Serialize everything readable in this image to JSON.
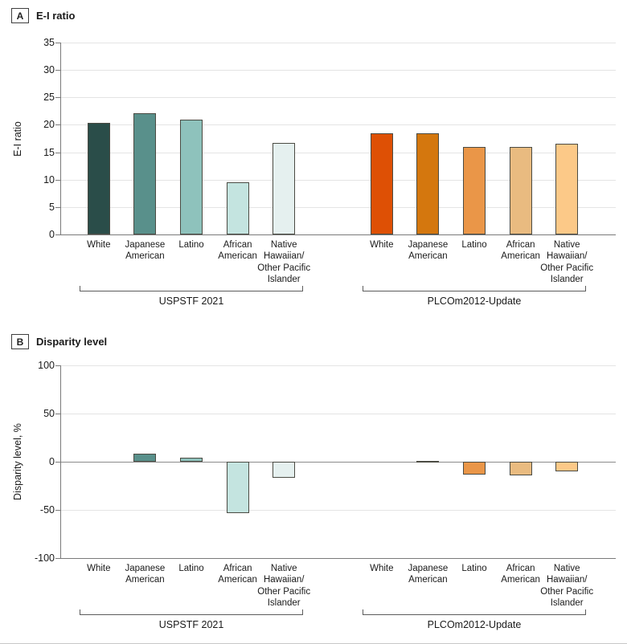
{
  "chart_data": [
    {
      "type": "bar",
      "panel_label": "A",
      "title": "E-I ratio",
      "ylabel": "E-I ratio",
      "ylim": [
        0,
        35
      ],
      "yticks": [
        35,
        30,
        25,
        20,
        15,
        10,
        5,
        0
      ],
      "grid": true,
      "legend_position": "none",
      "categories": [
        "White",
        "Japanese American",
        "Latino",
        "African American",
        "Native Hawaiian/ Other Pacific Islander"
      ],
      "groups": [
        {
          "label": "USPSTF 2021",
          "values": [
            20.3,
            22.1,
            21.0,
            9.5,
            16.7
          ],
          "colors": [
            "#2a4d49",
            "#59908b",
            "#8ec2bc",
            "#c4e4e0",
            "#e5f0ef"
          ]
        },
        {
          "label": "PLCOm2012-Update",
          "values": [
            18.4,
            18.5,
            16.0,
            15.9,
            16.5
          ],
          "colors": [
            "#de5005",
            "#d4770e",
            "#ea9648",
            "#e9bb80",
            "#fcc988"
          ]
        }
      ]
    },
    {
      "type": "bar",
      "panel_label": "B",
      "title": "Disparity level",
      "ylabel": "Disparity level, %",
      "ylim": [
        -100,
        100
      ],
      "yticks": [
        100,
        50,
        0,
        -50,
        -100
      ],
      "grid": true,
      "zero_line": true,
      "legend_position": "none",
      "categories": [
        "White",
        "Japanese American",
        "Latino",
        "African American",
        "Native Hawaiian/ Other Pacific Islander"
      ],
      "groups": [
        {
          "label": "USPSTF 2021",
          "values": [
            0,
            8,
            4,
            -53,
            -17
          ],
          "colors": [
            "#2a4d49",
            "#59908b",
            "#8ec2bc",
            "#c4e4e0",
            "#e5f0ef"
          ]
        },
        {
          "label": "PLCOm2012-Update",
          "values": [
            0,
            1,
            -13,
            -14,
            -10
          ],
          "colors": [
            "#de5005",
            "#d4770e",
            "#ea9648",
            "#e9bb80",
            "#fcc988"
          ]
        }
      ]
    }
  ]
}
